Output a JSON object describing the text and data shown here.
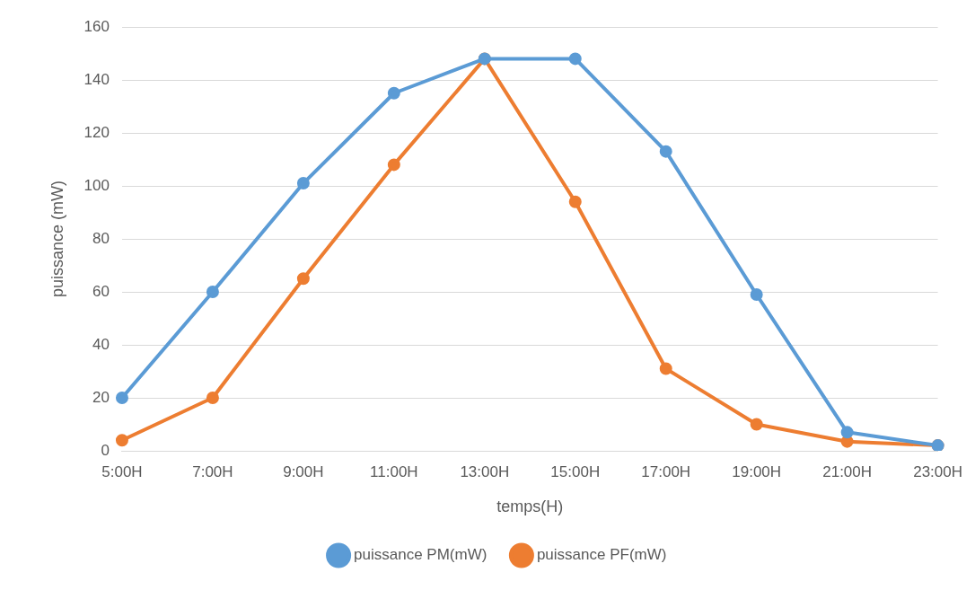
{
  "chart_data": {
    "type": "line",
    "xlabel": "temps(H)",
    "ylabel": "puissance (mW)",
    "categories": [
      "5:00H",
      "7:00H",
      "9:00H",
      "11:00H",
      "13:00H",
      "15:00H",
      "17:00H",
      "19:00H",
      "21:00H",
      "23:00H"
    ],
    "series": [
      {
        "name": "puissance PM(mW)",
        "color": "#5b9bd5",
        "values": [
          20,
          60,
          101,
          135,
          148,
          148,
          113,
          59,
          7,
          2
        ]
      },
      {
        "name": "puissance PF(mW)",
        "color": "#ed7d31",
        "values": [
          4,
          20,
          65,
          108,
          148,
          94,
          31,
          10,
          3.5,
          2
        ]
      }
    ],
    "ylim": [
      0,
      160
    ],
    "yticks": [
      0,
      20,
      40,
      60,
      80,
      100,
      120,
      140,
      160
    ],
    "grid": "y",
    "legend": "bottom",
    "marker": "circle",
    "line_style": "solid"
  }
}
